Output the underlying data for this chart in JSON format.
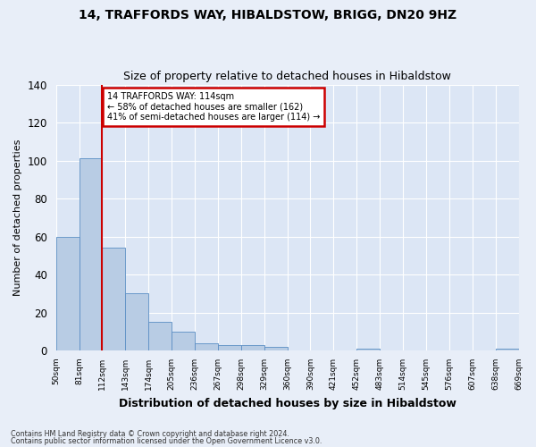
{
  "title": "14, TRAFFORDS WAY, HIBALDSTOW, BRIGG, DN20 9HZ",
  "subtitle": "Size of property relative to detached houses in Hibaldstow",
  "xlabel": "Distribution of detached houses by size in Hibaldstow",
  "ylabel": "Number of detached properties",
  "bar_values": [
    60,
    101,
    54,
    30,
    15,
    10,
    4,
    3,
    3,
    2,
    0,
    0,
    0,
    1,
    0,
    0,
    0,
    0,
    0,
    1
  ],
  "categories": [
    "50sqm",
    "81sqm",
    "112sqm",
    "143sqm",
    "174sqm",
    "205sqm",
    "236sqm",
    "267sqm",
    "298sqm",
    "329sqm",
    "360sqm",
    "390sqm",
    "421sqm",
    "452sqm",
    "483sqm",
    "514sqm",
    "545sqm",
    "576sqm",
    "607sqm",
    "638sqm",
    "669sqm"
  ],
  "bar_color": "#b8cce4",
  "bar_edge_color": "#5b8ec4",
  "annotation_title": "14 TRAFFORDS WAY: 114sqm",
  "annotation_line1": "← 58% of detached houses are smaller (162)",
  "annotation_line2": "41% of semi-detached houses are larger (114) →",
  "annotation_box_color": "#ffffff",
  "annotation_box_edge": "#cc0000",
  "property_line_color": "#cc0000",
  "ylim": [
    0,
    140
  ],
  "yticks": [
    0,
    20,
    40,
    60,
    80,
    100,
    120,
    140
  ],
  "fig_bg_color": "#e8eef8",
  "plot_bg_color": "#dce6f5",
  "grid_color": "#ffffff",
  "footnote1": "Contains HM Land Registry data © Crown copyright and database right 2024.",
  "footnote2": "Contains public sector information licensed under the Open Government Licence v3.0."
}
